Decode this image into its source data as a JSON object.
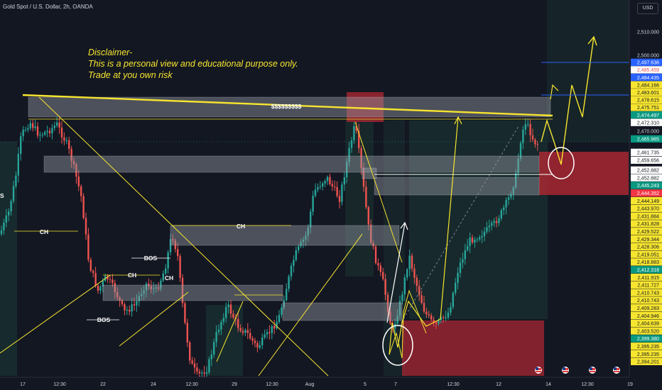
{
  "header": {
    "title": "Gold Spot / U.S. Dollar, 2h, OANDA",
    "currency_button": "USD"
  },
  "annotation": {
    "lines": [
      "Disclaimer-",
      "This is a personal view and educational purpose only.",
      "Trade at you own risk"
    ],
    "color": "#f7e52f"
  },
  "markers": {
    "dollar_zone": "$$$$$$$$$",
    "ch": "CH",
    "bos": "BOS",
    "left_edge": "S"
  },
  "countdown": "48:21",
  "colors": {
    "background": "#131722",
    "bull": "#26a69a",
    "bear": "#ef5350",
    "yellow": "#f7e52f",
    "blue": "#2962ff",
    "zone": "#9598a1"
  },
  "price_axis": [
    {
      "label": "2,510.000",
      "style": "plain"
    },
    {
      "label": "2,500.000",
      "style": "plain"
    },
    {
      "label": "2,497.636",
      "style": "blue"
    },
    {
      "label": "2,485.459",
      "style": "white-red"
    },
    {
      "label": "2,484.435",
      "style": "blue"
    },
    {
      "label": "2,484.166",
      "style": "yellow"
    },
    {
      "label": "2,483.601",
      "style": "yellow"
    },
    {
      "label": "2,478.615",
      "style": "yellow"
    },
    {
      "label": "2,475.751",
      "style": "yellow"
    },
    {
      "label": "2,474.497",
      "style": "green"
    },
    {
      "label": "2,472.310",
      "style": "white"
    },
    {
      "label": "2,470.000",
      "style": "plain"
    },
    {
      "label": "2,465.965",
      "style": "green"
    },
    {
      "label": "2,461.735",
      "style": "white"
    },
    {
      "label": "2,459.656",
      "style": "white"
    },
    {
      "label": "2,452.882",
      "style": "white"
    },
    {
      "label": "2,452.882",
      "style": "white"
    },
    {
      "label": "2,445.243",
      "style": "green"
    },
    {
      "label": "2,444.352",
      "style": "red"
    },
    {
      "label": "2,444.149",
      "style": "yellow"
    },
    {
      "label": "2,443.970",
      "style": "yellow"
    },
    {
      "label": "2,431.884",
      "style": "yellow"
    },
    {
      "label": "2,431.828",
      "style": "yellow"
    },
    {
      "label": "2,429.522",
      "style": "yellow"
    },
    {
      "label": "2,429.344",
      "style": "yellow"
    },
    {
      "label": "2,428.306",
      "style": "yellow"
    },
    {
      "label": "2,419.051",
      "style": "yellow"
    },
    {
      "label": "2,418.883",
      "style": "yellow"
    },
    {
      "label": "2,412.318",
      "style": "green"
    },
    {
      "label": "2,411.915",
      "style": "yellow"
    },
    {
      "label": "2,411.727",
      "style": "yellow"
    },
    {
      "label": "2,410.743",
      "style": "yellow"
    },
    {
      "label": "2,410.743",
      "style": "yellow"
    },
    {
      "label": "2,409.283",
      "style": "yellow"
    },
    {
      "label": "2,404.946",
      "style": "yellow"
    },
    {
      "label": "2,404.639",
      "style": "yellow"
    },
    {
      "label": "2,403.520",
      "style": "yellow"
    },
    {
      "label": "2,399.380",
      "style": "green"
    },
    {
      "label": "2,395.235",
      "style": "yellow"
    },
    {
      "label": "2,395.235",
      "style": "yellow"
    },
    {
      "label": "2,394.201",
      "style": "yellow"
    }
  ],
  "time_axis": [
    "17",
    "12:30",
    "22",
    "24",
    "12:30",
    "29",
    "12:30",
    "Aug",
    "5",
    "7",
    "12:30",
    "12",
    "14",
    "12:30",
    "19"
  ]
}
